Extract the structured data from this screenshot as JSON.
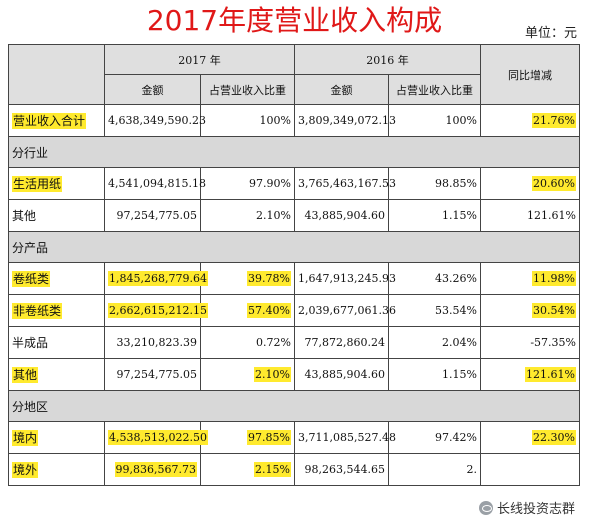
{
  "title": "2017年度营业收入构成",
  "unit": "单位：元",
  "headers": {
    "y2017": "2017 年",
    "y2016": "2016 年",
    "yoy": "同比增减",
    "amount": "金额",
    "share": "占营业收入比重"
  },
  "rows": [
    {
      "label": "营业收入合计",
      "a17": "4,638,349,590.23",
      "s17": "100%",
      "a16": "3,809,349,072.13",
      "s16": "100%",
      "yoy": "21.76%"
    },
    {
      "label": "分行业"
    },
    {
      "label": "生活用纸",
      "a17": "4,541,094,815.18",
      "s17": "97.90%",
      "a16": "3,765,463,167.53",
      "s16": "98.85%",
      "yoy": "20.60%"
    },
    {
      "label": "其他",
      "a17": "97,254,775.05",
      "s17": "2.10%",
      "a16": "43,885,904.60",
      "s16": "1.15%",
      "yoy": "121.61%"
    },
    {
      "label": "分产品"
    },
    {
      "label": "卷纸类",
      "a17": "1,845,268,779.64",
      "s17": "39.78%",
      "a16": "1,647,913,245.93",
      "s16": "43.26%",
      "yoy": "11.98%"
    },
    {
      "label": "非卷纸类",
      "a17": "2,662,615,212.15",
      "s17": "57.40%",
      "a16": "2,039,677,061.36",
      "s16": "53.54%",
      "yoy": "30.54%"
    },
    {
      "label": "半成品",
      "a17": "33,210,823.39",
      "s17": "0.72%",
      "a16": "77,872,860.24",
      "s16": "2.04%",
      "yoy": "-57.35%"
    },
    {
      "label": "其他",
      "a17": "97,254,775.05",
      "s17": "2.10%",
      "a16": "43,885,904.60",
      "s16": "1.15%",
      "yoy": "121.61%"
    },
    {
      "label": "分地区"
    },
    {
      "label": "境内",
      "a17": "4,538,513,022.50",
      "s17": "97.85%",
      "a16": "3,711,085,527.48",
      "s16": "97.42%",
      "yoy": "22.30%"
    },
    {
      "label": "境外",
      "a17": "99,836,567.73",
      "s17": "2.15%",
      "a16": "98,263,544.65",
      "s16": "2.",
      "yoy": ""
    }
  ],
  "watermark": "长线投资志群",
  "highlight_color": "#ffea2e"
}
